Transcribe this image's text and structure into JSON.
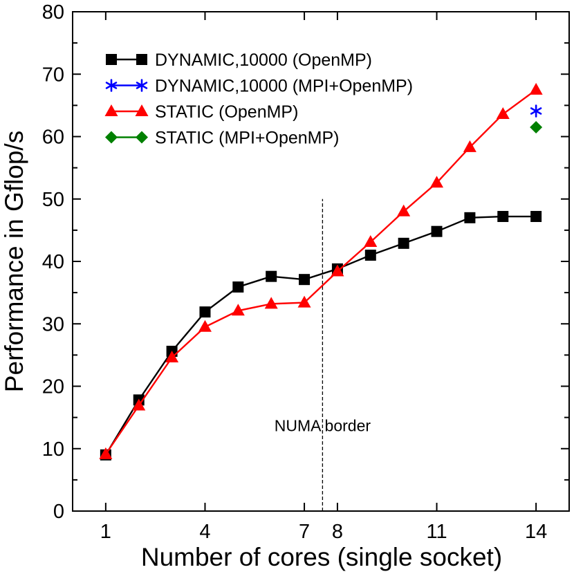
{
  "chart_data": {
    "type": "line",
    "xlabel": "Number of cores (single socket)",
    "ylabel": "Performance in Gflop/s",
    "xlim": [
      0.0,
      15.0
    ],
    "ylim": [
      0,
      80
    ],
    "x_ticks": [
      1,
      4,
      7,
      8,
      11,
      14
    ],
    "y_ticks": [
      0,
      10,
      20,
      30,
      40,
      50,
      60,
      70,
      80
    ],
    "grid": false,
    "legend_position": "top-left",
    "annotations": [
      {
        "text": "NUMA border",
        "x": 7.55,
        "type": "vertical-dashed-line",
        "y_range": [
          0,
          50
        ]
      }
    ],
    "series": [
      {
        "name": "DYNAMIC,10000 (OpenMP)",
        "color": "#000000",
        "marker": "square",
        "x": [
          1,
          2,
          3,
          4,
          5,
          6,
          7,
          8,
          9,
          10,
          11,
          12,
          13,
          14
        ],
        "values": [
          9.0,
          17.8,
          25.6,
          31.9,
          35.9,
          37.6,
          37.1,
          38.8,
          41.0,
          42.9,
          44.8,
          47.0,
          47.2,
          47.2
        ]
      },
      {
        "name": "DYNAMIC,10000 (MPI+OpenMP)",
        "color": "#0000ff",
        "marker": "asterisk",
        "x": [
          14
        ],
        "values": [
          64.1
        ]
      },
      {
        "name": "STATIC (OpenMP)",
        "color": "#ff0000",
        "marker": "triangle",
        "x": [
          1,
          2,
          3,
          4,
          5,
          6,
          7,
          8,
          9,
          10,
          11,
          12,
          13,
          14
        ],
        "values": [
          9.1,
          16.9,
          24.6,
          29.5,
          32.1,
          33.2,
          33.4,
          38.4,
          43.1,
          48.0,
          52.6,
          58.3,
          63.6,
          67.5
        ]
      },
      {
        "name": "STATIC (MPI+OpenMP)",
        "color": "#008000",
        "marker": "diamond",
        "x": [
          14
        ],
        "values": [
          61.5
        ]
      }
    ]
  }
}
